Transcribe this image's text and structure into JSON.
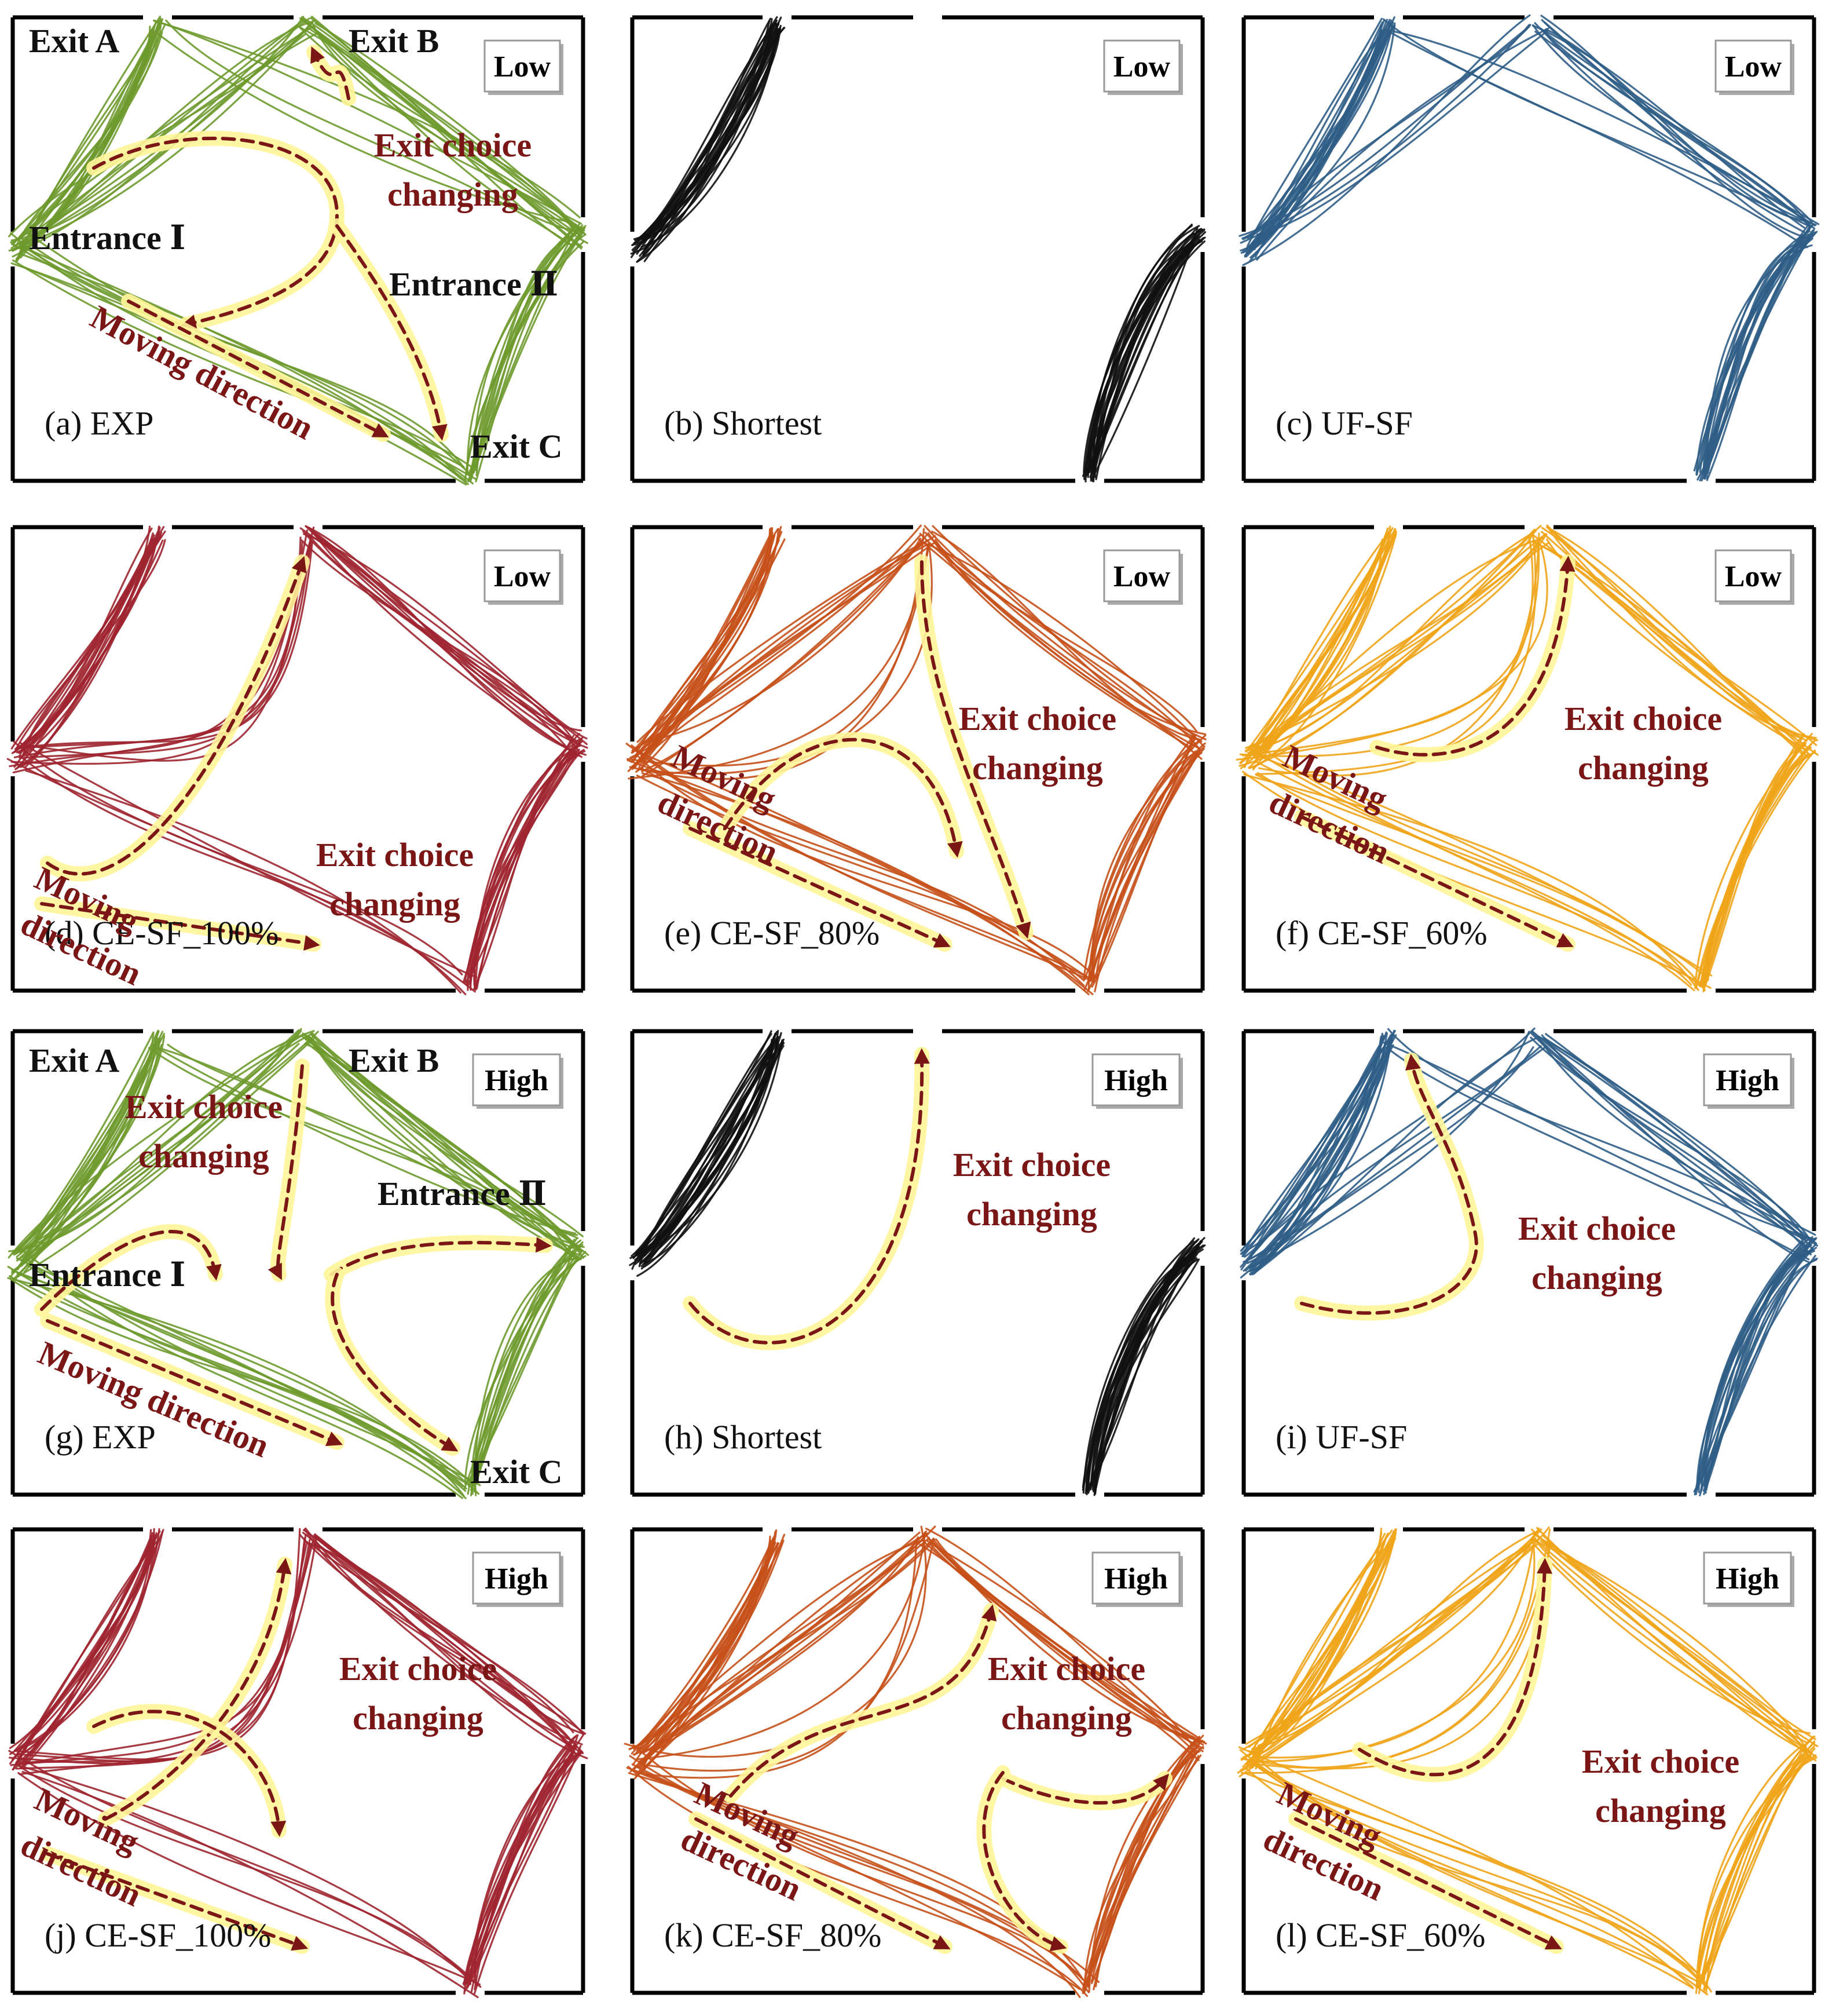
{
  "palette": {
    "exp": "#6e9a2e",
    "shortest": "#111111",
    "uf_sf": "#2f5d86",
    "ce100": "#9e2530",
    "ce80": "#c7501a",
    "ce60": "#efa418",
    "annotation": "#7a1616",
    "highlight": "#fff59a"
  },
  "icons": {
    "arrow": "dashed-arrow-icon",
    "badge": "density-badge"
  },
  "panels": [
    {
      "id": "a",
      "label": "(a) EXP",
      "density": "Low",
      "color_key": "exp",
      "annotations": [
        {
          "kind": "black",
          "text": "Exit A"
        },
        {
          "kind": "black",
          "text": "Exit B"
        },
        {
          "kind": "black",
          "text": "Entrance Ⅰ"
        },
        {
          "kind": "black",
          "text": "Entrance Ⅱ"
        },
        {
          "kind": "black",
          "text": "Exit C"
        },
        {
          "kind": "red",
          "text": "Exit choice"
        },
        {
          "kind": "red",
          "text": "changing"
        },
        {
          "kind": "red",
          "text": "Moving direction"
        }
      ]
    },
    {
      "id": "b",
      "label": "(b) Shortest",
      "density": "Low",
      "color_key": "shortest",
      "annotations": []
    },
    {
      "id": "c",
      "label": "(c) UF-SF",
      "density": "Low",
      "color_key": "uf_sf",
      "annotations": []
    },
    {
      "id": "d",
      "label": "(d) CE-SF_100%",
      "density": "Low",
      "color_key": "ce100",
      "annotations": [
        {
          "kind": "red",
          "text": "Exit choice"
        },
        {
          "kind": "red",
          "text": "changing"
        },
        {
          "kind": "red",
          "text": "Moving"
        },
        {
          "kind": "red",
          "text": "direction"
        }
      ]
    },
    {
      "id": "e",
      "label": "(e) CE-SF_80%",
      "density": "Low",
      "color_key": "ce80",
      "annotations": [
        {
          "kind": "red",
          "text": "Exit choice"
        },
        {
          "kind": "red",
          "text": "changing"
        },
        {
          "kind": "red",
          "text": "Moving"
        },
        {
          "kind": "red",
          "text": "direction"
        }
      ]
    },
    {
      "id": "f",
      "label": "(f) CE-SF_60%",
      "density": "Low",
      "color_key": "ce60",
      "annotations": [
        {
          "kind": "red",
          "text": "Exit choice"
        },
        {
          "kind": "red",
          "text": "changing"
        },
        {
          "kind": "red",
          "text": "Moving"
        },
        {
          "kind": "red",
          "text": "direction"
        }
      ]
    },
    {
      "id": "g",
      "label": "(g) EXP",
      "density": "High",
      "color_key": "exp",
      "annotations": [
        {
          "kind": "black",
          "text": "Exit A"
        },
        {
          "kind": "black",
          "text": "Exit B"
        },
        {
          "kind": "black",
          "text": "Entrance Ⅱ"
        },
        {
          "kind": "black",
          "text": "Entrance Ⅰ"
        },
        {
          "kind": "black",
          "text": "Exit C"
        },
        {
          "kind": "red",
          "text": "Exit choice"
        },
        {
          "kind": "red",
          "text": "changing"
        },
        {
          "kind": "red",
          "text": "Moving direction"
        }
      ]
    },
    {
      "id": "h",
      "label": "(h) Shortest",
      "density": "High",
      "color_key": "shortest",
      "annotations": [
        {
          "kind": "red",
          "text": "Exit choice"
        },
        {
          "kind": "red",
          "text": "changing"
        }
      ]
    },
    {
      "id": "i",
      "label": "(i) UF-SF",
      "density": "High",
      "color_key": "uf_sf",
      "annotations": [
        {
          "kind": "red",
          "text": "Exit choice"
        },
        {
          "kind": "red",
          "text": "changing"
        }
      ]
    },
    {
      "id": "j",
      "label": "(j) CE-SF_100%",
      "density": "High",
      "color_key": "ce100",
      "annotations": [
        {
          "kind": "red",
          "text": "Exit choice"
        },
        {
          "kind": "red",
          "text": "changing"
        },
        {
          "kind": "red",
          "text": "Moving"
        },
        {
          "kind": "red",
          "text": "direction"
        }
      ]
    },
    {
      "id": "k",
      "label": "(k) CE-SF_80%",
      "density": "High",
      "color_key": "ce80",
      "annotations": [
        {
          "kind": "red",
          "text": "Exit choice"
        },
        {
          "kind": "red",
          "text": "changing"
        },
        {
          "kind": "red",
          "text": "Moving"
        },
        {
          "kind": "red",
          "text": "direction"
        }
      ]
    },
    {
      "id": "l",
      "label": "(l) CE-SF_60%",
      "density": "High",
      "color_key": "ce60",
      "annotations": [
        {
          "kind": "red",
          "text": "Exit choice"
        },
        {
          "kind": "red",
          "text": "changing"
        },
        {
          "kind": "red",
          "text": "Moving"
        },
        {
          "kind": "red",
          "text": "direction"
        }
      ]
    }
  ]
}
